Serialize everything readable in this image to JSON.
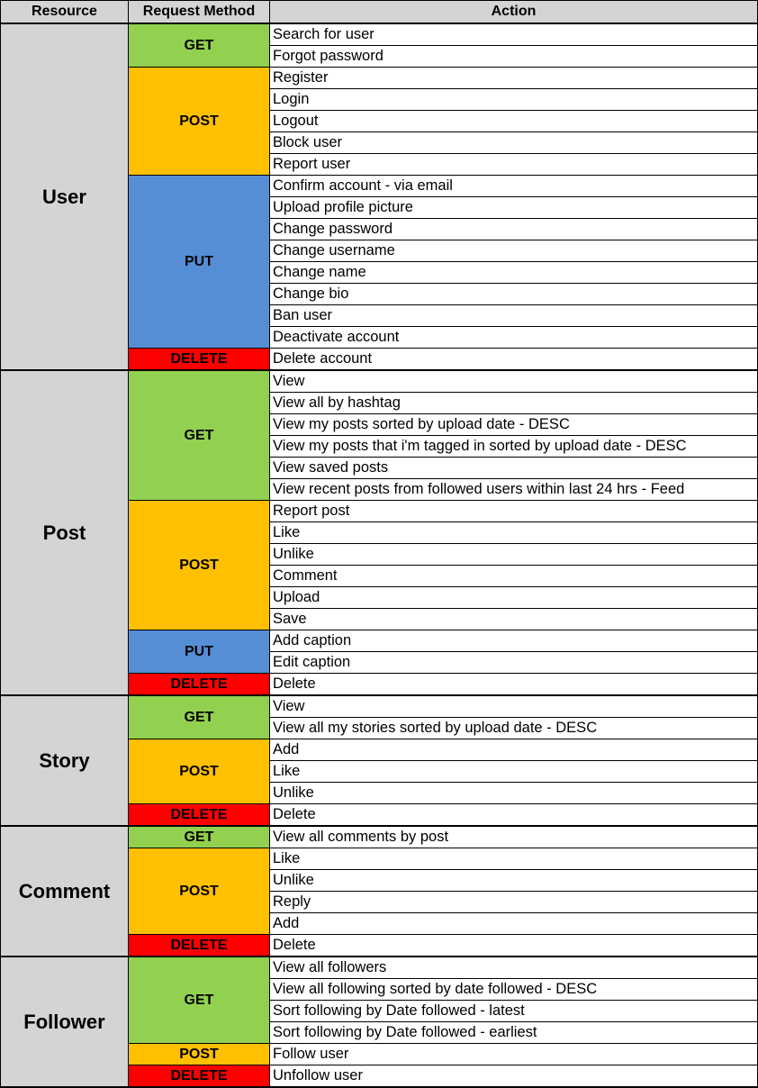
{
  "colors": {
    "header_bg": "#d4d4d4",
    "resource_bg": "#d4d4d4",
    "GET": "#92d050",
    "POST": "#ffc000",
    "PUT": "#558ed5",
    "DELETE": "#ff0000"
  },
  "headers": {
    "resource": "Resource",
    "method": "Request Method",
    "action": "Action"
  },
  "resources": [
    {
      "name": "User",
      "methods": [
        {
          "method": "GET",
          "actions": [
            "Search for user",
            "Forgot password"
          ]
        },
        {
          "method": "POST",
          "actions": [
            "Register",
            "Login",
            "Logout",
            "Block user",
            "Report user"
          ]
        },
        {
          "method": "PUT",
          "actions": [
            "Confirm account - via email",
            "Upload profile picture",
            "Change password",
            "Change username",
            "Change name",
            "Change bio",
            "Ban user",
            "Deactivate account"
          ]
        },
        {
          "method": "DELETE",
          "actions": [
            "Delete account"
          ]
        }
      ]
    },
    {
      "name": "Post",
      "methods": [
        {
          "method": "GET",
          "actions": [
            "View",
            "View all by hashtag",
            "View my posts sorted by upload date - DESC",
            "View my posts that i'm tagged in sorted by upload date - DESC",
            "View saved posts",
            "View recent posts from followed users within last 24 hrs - Feed"
          ]
        },
        {
          "method": "POST",
          "actions": [
            "Report post",
            "Like",
            "Unlike",
            "Comment",
            "Upload",
            "Save"
          ]
        },
        {
          "method": "PUT",
          "actions": [
            "Add caption",
            "Edit caption"
          ]
        },
        {
          "method": "DELETE",
          "actions": [
            "Delete"
          ]
        }
      ]
    },
    {
      "name": "Story",
      "methods": [
        {
          "method": "GET",
          "actions": [
            "View",
            "View all my stories sorted by upload date - DESC"
          ]
        },
        {
          "method": "POST",
          "actions": [
            "Add",
            "Like",
            "Unlike"
          ]
        },
        {
          "method": "DELETE",
          "actions": [
            "Delete"
          ]
        }
      ]
    },
    {
      "name": "Comment",
      "methods": [
        {
          "method": "GET",
          "actions": [
            "View all comments by post"
          ]
        },
        {
          "method": "POST",
          "actions": [
            "Like",
            "Unlike",
            "Reply",
            "Add"
          ]
        },
        {
          "method": "DELETE",
          "actions": [
            "Delete"
          ]
        }
      ]
    },
    {
      "name": "Follower",
      "methods": [
        {
          "method": "GET",
          "actions": [
            "View all followers",
            "View all following sorted by date followed - DESC",
            "Sort following by Date followed - latest",
            "Sort following by Date followed - earliest"
          ]
        },
        {
          "method": "POST",
          "actions": [
            "Follow user"
          ]
        },
        {
          "method": "DELETE",
          "actions": [
            "Unfollow user"
          ]
        }
      ]
    }
  ]
}
